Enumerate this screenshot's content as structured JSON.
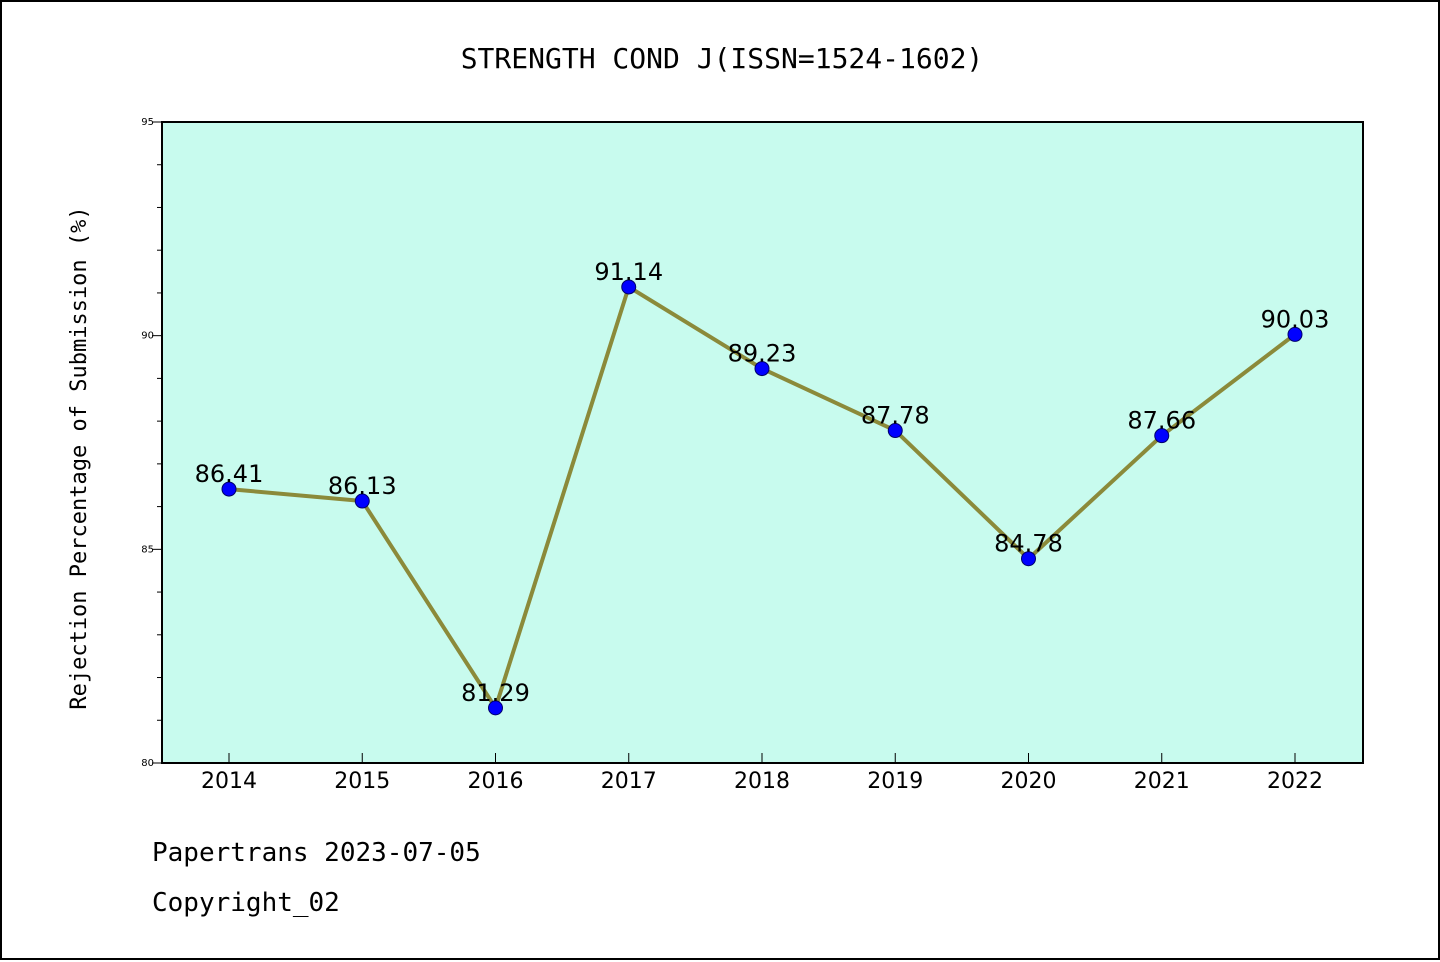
{
  "chart_data": {
    "type": "line",
    "title": "STRENGTH COND J(ISSN=1524-1602)",
    "ylabel": "Rejection Percentage of Submission (%)",
    "xlabel": "",
    "categories": [
      "2014",
      "2015",
      "2016",
      "2017",
      "2018",
      "2019",
      "2020",
      "2021",
      "2022"
    ],
    "values": [
      86.41,
      86.13,
      81.29,
      91.14,
      89.23,
      87.78,
      84.78,
      87.66,
      90.03
    ],
    "data_labels": [
      "86.41",
      "86.13",
      "81.29",
      "91.14",
      "89.23",
      "87.78",
      "84.78",
      "87.66",
      "90.03"
    ],
    "ylim": [
      80,
      95
    ],
    "yticks": [
      "80",
      "85",
      "90",
      "95"
    ],
    "grid": false,
    "colors": {
      "plot_background": "#c8fbee",
      "line": "#8b8a3a",
      "marker": "#0000ff"
    }
  },
  "footer": {
    "line1": "Papertrans 2023-07-05",
    "line2": "Copyright_02"
  }
}
